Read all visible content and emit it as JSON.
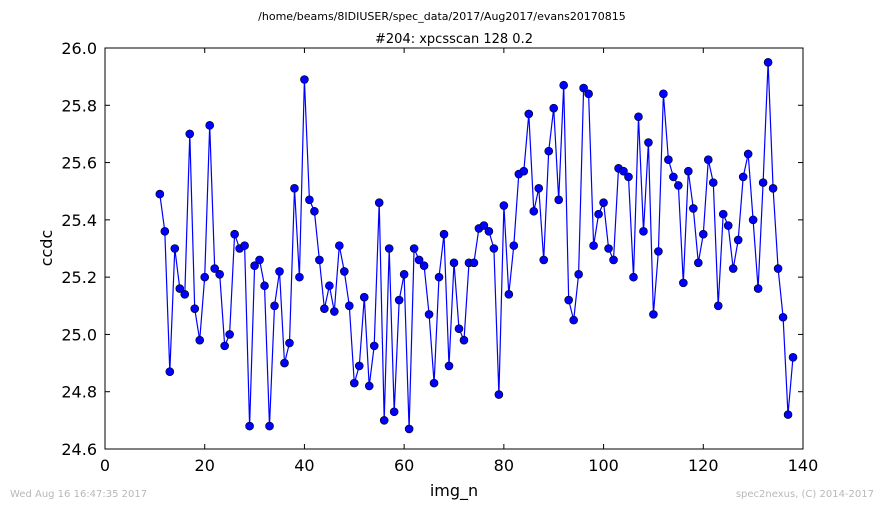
{
  "figure": {
    "suptitle": "/home/beams/8IDIUSER/spec_data/2017/Aug2017/evans20170815",
    "footer_left": "Wed Aug 16 16:47:35 2017",
    "footer_right": "spec2nexus, (C) 2014-2017"
  },
  "chart_data": {
    "type": "line",
    "title": "#204: xpcsscan 128 0.2",
    "xlabel": "img_n",
    "ylabel": "ccdc",
    "xlim": [
      0,
      140
    ],
    "ylim": [
      24.6,
      26.0
    ],
    "xticks": [
      0,
      20,
      40,
      60,
      80,
      100,
      120,
      140
    ],
    "yticks": [
      24.6,
      24.8,
      25.0,
      25.2,
      25.4,
      25.6,
      25.8,
      26.0
    ],
    "xtick_labels": [
      "0",
      "20",
      "40",
      "60",
      "80",
      "100",
      "120",
      "140"
    ],
    "ytick_labels": [
      "24.6",
      "24.8",
      "25.0",
      "25.2",
      "25.4",
      "25.6",
      "25.8",
      "26.0"
    ],
    "grid": false,
    "line_color": "#0000ff",
    "marker": "circle",
    "series": [
      {
        "x": [
          11,
          12,
          13,
          14,
          15,
          16,
          17,
          18,
          19,
          20,
          21,
          22,
          23,
          24,
          25,
          26,
          27,
          28,
          29,
          30,
          31,
          32,
          33,
          34,
          35,
          36,
          37,
          38,
          39,
          40,
          41,
          42,
          43,
          44,
          45,
          46,
          47,
          48,
          49,
          50,
          51,
          52,
          53,
          54,
          55,
          56,
          57,
          58,
          59,
          60,
          61,
          62,
          63,
          64,
          65,
          66,
          67,
          68,
          69,
          70,
          71,
          72,
          73,
          74,
          75,
          76,
          77,
          78,
          79,
          80,
          81,
          82,
          83,
          84,
          85,
          86,
          87,
          88,
          89,
          90,
          91,
          92,
          93,
          94,
          95,
          96,
          97,
          98,
          99,
          100,
          101,
          102,
          103,
          104,
          105,
          106,
          107,
          108,
          109,
          110,
          111,
          112,
          113,
          114,
          115,
          116,
          117,
          118,
          119,
          120,
          121,
          122,
          123,
          124,
          125,
          126,
          127,
          128,
          129,
          130,
          131,
          132,
          133,
          134,
          135,
          136,
          137,
          138
        ],
        "y": [
          25.49,
          25.36,
          24.87,
          25.3,
          25.16,
          25.14,
          25.7,
          25.09,
          24.98,
          25.2,
          25.73,
          25.23,
          25.21,
          24.96,
          25.0,
          25.35,
          25.3,
          25.31,
          24.68,
          25.24,
          25.26,
          25.17,
          24.68,
          25.1,
          25.22,
          24.9,
          24.97,
          25.51,
          25.2,
          25.89,
          25.47,
          25.43,
          25.26,
          25.09,
          25.17,
          25.08,
          25.31,
          25.22,
          25.1,
          24.83,
          24.89,
          25.13,
          24.82,
          24.96,
          25.46,
          24.7,
          25.3,
          24.73,
          25.12,
          25.21,
          24.67,
          25.3,
          25.26,
          25.24,
          25.07,
          24.83,
          25.2,
          25.35,
          24.89,
          25.25,
          25.02,
          24.98,
          25.25,
          25.25,
          25.37,
          25.38,
          25.36,
          25.3,
          24.79,
          25.45,
          25.14,
          25.31,
          25.56,
          25.57,
          25.77,
          25.43,
          25.51,
          25.26,
          25.64,
          25.79,
          25.47,
          25.87,
          25.12,
          25.05,
          25.21,
          25.86,
          25.84,
          25.31,
          25.42,
          25.46,
          25.3,
          25.26,
          25.58,
          25.57,
          25.55,
          25.2,
          25.76,
          25.36,
          25.67,
          25.07,
          25.29,
          25.84,
          25.61,
          25.55,
          25.52,
          25.18,
          25.57,
          25.44,
          25.25,
          25.35,
          25.61,
          25.53,
          25.1,
          25.42,
          25.38,
          25.23,
          25.33,
          25.55,
          25.63,
          25.4,
          25.16,
          25.53,
          25.95,
          25.51,
          25.23,
          25.06,
          24.72,
          24.92
        ]
      }
    ]
  }
}
